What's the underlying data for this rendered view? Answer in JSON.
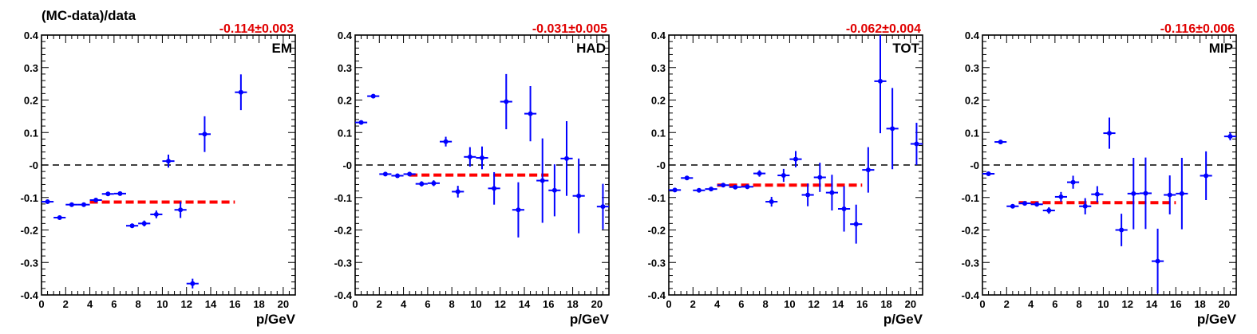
{
  "figure": {
    "ylabel": "(MC-data)/data",
    "xlabel": "p/GeV",
    "xlim": [
      0,
      21
    ],
    "ylim": [
      -0.4,
      0.4
    ],
    "xticks": [
      "0",
      "2",
      "4",
      "6",
      "8",
      "10",
      "12",
      "14",
      "16",
      "18",
      "20"
    ],
    "yticks": [
      "-0.4",
      "-0.3",
      "-0.2",
      "-0.1",
      "-0",
      "0.1",
      "0.2",
      "0.3",
      "0.4"
    ],
    "colors": {
      "points": "#0000ff",
      "fit": "#ff0000",
      "zero_line": "#000000",
      "fit_text": "#e00000"
    }
  },
  "chart_data": [
    {
      "type": "scatter",
      "panel_label": "EM",
      "fit_text": "-0.114±0.003",
      "fit": {
        "value": -0.114,
        "x_range": [
          4,
          16
        ]
      },
      "points": [
        {
          "x": 0.5,
          "y": -0.113,
          "err": 0.005
        },
        {
          "x": 1.5,
          "y": -0.162,
          "err": 0.004
        },
        {
          "x": 2.5,
          "y": -0.122,
          "err": 0.004
        },
        {
          "x": 3.5,
          "y": -0.122,
          "err": 0.004
        },
        {
          "x": 4.5,
          "y": -0.108,
          "err": 0.005
        },
        {
          "x": 5.5,
          "y": -0.089,
          "err": 0.005
        },
        {
          "x": 6.5,
          "y": -0.088,
          "err": 0.006
        },
        {
          "x": 7.5,
          "y": -0.187,
          "err": 0.007
        },
        {
          "x": 8.5,
          "y": -0.18,
          "err": 0.009
        },
        {
          "x": 9.5,
          "y": -0.152,
          "err": 0.012
        },
        {
          "x": 10.5,
          "y": 0.012,
          "err": 0.02
        },
        {
          "x": 11.5,
          "y": -0.138,
          "err": 0.025
        },
        {
          "x": 12.5,
          "y": -0.365,
          "err": 0.015
        },
        {
          "x": 13.5,
          "y": 0.095,
          "err": 0.055
        },
        {
          "x": 16.5,
          "y": 0.224,
          "err": 0.055
        }
      ]
    },
    {
      "type": "scatter",
      "panel_label": "HAD",
      "fit_text": "-0.031±0.005",
      "fit": {
        "value": -0.031,
        "x_range": [
          4.5,
          16
        ]
      },
      "points": [
        {
          "x": 0.5,
          "y": 0.131,
          "err": 0.005
        },
        {
          "x": 1.5,
          "y": 0.212,
          "err": 0.005
        },
        {
          "x": 2.5,
          "y": -0.028,
          "err": 0.005
        },
        {
          "x": 3.5,
          "y": -0.033,
          "err": 0.005
        },
        {
          "x": 4.5,
          "y": -0.028,
          "err": 0.006
        },
        {
          "x": 5.5,
          "y": -0.058,
          "err": 0.008
        },
        {
          "x": 6.5,
          "y": -0.056,
          "err": 0.009
        },
        {
          "x": 7.5,
          "y": 0.072,
          "err": 0.015
        },
        {
          "x": 8.5,
          "y": -0.082,
          "err": 0.018
        },
        {
          "x": 9.5,
          "y": 0.025,
          "err": 0.03
        },
        {
          "x": 10.5,
          "y": 0.022,
          "err": 0.035
        },
        {
          "x": 11.5,
          "y": -0.072,
          "err": 0.05
        },
        {
          "x": 12.5,
          "y": 0.195,
          "err": 0.085
        },
        {
          "x": 13.5,
          "y": -0.138,
          "err": 0.085
        },
        {
          "x": 14.5,
          "y": 0.158,
          "err": 0.085
        },
        {
          "x": 15.5,
          "y": -0.048,
          "err": 0.13
        },
        {
          "x": 16.5,
          "y": -0.078,
          "err": 0.08
        },
        {
          "x": 17.5,
          "y": 0.02,
          "err": 0.115
        },
        {
          "x": 18.5,
          "y": -0.095,
          "err": 0.115
        },
        {
          "x": 20.5,
          "y": -0.128,
          "err": 0.07
        }
      ]
    },
    {
      "type": "scatter",
      "panel_label": "TOT",
      "fit_text": "-0.062±0.004",
      "fit": {
        "value": -0.062,
        "x_range": [
          4,
          16
        ]
      },
      "points": [
        {
          "x": 0.5,
          "y": -0.077,
          "err": 0.005
        },
        {
          "x": 1.5,
          "y": -0.04,
          "err": 0.004
        },
        {
          "x": 2.5,
          "y": -0.078,
          "err": 0.004
        },
        {
          "x": 3.5,
          "y": -0.074,
          "err": 0.004
        },
        {
          "x": 4.5,
          "y": -0.062,
          "err": 0.005
        },
        {
          "x": 5.5,
          "y": -0.068,
          "err": 0.006
        },
        {
          "x": 6.5,
          "y": -0.067,
          "err": 0.007
        },
        {
          "x": 7.5,
          "y": -0.026,
          "err": 0.01
        },
        {
          "x": 8.5,
          "y": -0.113,
          "err": 0.015
        },
        {
          "x": 9.5,
          "y": -0.032,
          "err": 0.02
        },
        {
          "x": 10.5,
          "y": 0.018,
          "err": 0.025
        },
        {
          "x": 11.5,
          "y": -0.092,
          "err": 0.035
        },
        {
          "x": 12.5,
          "y": -0.038,
          "err": 0.045
        },
        {
          "x": 13.5,
          "y": -0.085,
          "err": 0.055
        },
        {
          "x": 14.5,
          "y": -0.135,
          "err": 0.07
        },
        {
          "x": 15.5,
          "y": -0.182,
          "err": 0.06
        },
        {
          "x": 16.5,
          "y": -0.015,
          "err": 0.07
        },
        {
          "x": 17.5,
          "y": 0.258,
          "err": 0.16
        },
        {
          "x": 18.5,
          "y": 0.112,
          "err": 0.125
        },
        {
          "x": 20.5,
          "y": 0.065,
          "err": 0.065
        }
      ]
    },
    {
      "type": "scatter",
      "panel_label": "MIP",
      "fit_text": "-0.116±0.006",
      "fit": {
        "value": -0.116,
        "x_range": [
          3,
          16
        ]
      },
      "points": [
        {
          "x": 0.5,
          "y": -0.027,
          "err": 0.005
        },
        {
          "x": 1.5,
          "y": 0.071,
          "err": 0.004
        },
        {
          "x": 2.5,
          "y": -0.127,
          "err": 0.004
        },
        {
          "x": 3.5,
          "y": -0.118,
          "err": 0.005
        },
        {
          "x": 4.5,
          "y": -0.121,
          "err": 0.007
        },
        {
          "x": 5.5,
          "y": -0.14,
          "err": 0.01
        },
        {
          "x": 6.5,
          "y": -0.098,
          "err": 0.015
        },
        {
          "x": 7.5,
          "y": -0.053,
          "err": 0.02
        },
        {
          "x": 8.5,
          "y": -0.127,
          "err": 0.025
        },
        {
          "x": 9.5,
          "y": -0.09,
          "err": 0.025
        },
        {
          "x": 10.5,
          "y": 0.098,
          "err": 0.048
        },
        {
          "x": 11.5,
          "y": -0.2,
          "err": 0.05
        },
        {
          "x": 12.5,
          "y": -0.088,
          "err": 0.11
        },
        {
          "x": 13.5,
          "y": -0.087,
          "err": 0.11
        },
        {
          "x": 14.5,
          "y": -0.296,
          "err": 0.1
        },
        {
          "x": 15.5,
          "y": -0.092,
          "err": 0.06
        },
        {
          "x": 16.5,
          "y": -0.088,
          "err": 0.11
        },
        {
          "x": 18.5,
          "y": -0.033,
          "err": 0.075
        },
        {
          "x": 20.5,
          "y": 0.088,
          "err": 0.012
        }
      ]
    }
  ]
}
